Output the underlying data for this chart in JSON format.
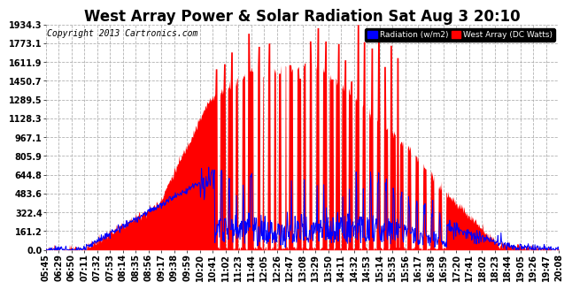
{
  "title": "West Array Power & Solar Radiation Sat Aug 3 20:10",
  "copyright": "Copyright 2013 Cartronics.com",
  "legend_radiation": "Radiation (w/m2)",
  "legend_west": "West Array (DC Watts)",
  "yticks": [
    0.0,
    161.2,
    322.4,
    483.6,
    644.8,
    805.9,
    967.1,
    1128.3,
    1289.5,
    1450.7,
    1611.9,
    1773.1,
    1934.3
  ],
  "ymax": 1934.3,
  "xtick_labels": [
    "05:45",
    "06:29",
    "06:50",
    "07:11",
    "07:32",
    "07:53",
    "08:14",
    "08:35",
    "08:56",
    "09:17",
    "09:38",
    "09:59",
    "10:20",
    "10:41",
    "11:02",
    "11:23",
    "11:44",
    "12:05",
    "12:26",
    "12:47",
    "13:08",
    "13:29",
    "13:50",
    "14:11",
    "14:32",
    "14:53",
    "15:14",
    "15:35",
    "15:56",
    "16:17",
    "16:38",
    "16:59",
    "17:20",
    "17:41",
    "18:02",
    "18:23",
    "18:44",
    "19:05",
    "19:26",
    "19:47",
    "20:08"
  ],
  "red_color": "#FF0000",
  "blue_color": "#0000FF",
  "bg_color": "#FFFFFF",
  "plot_bg_color": "#FFFFFF",
  "grid_color": "#AAAAAA",
  "title_fontsize": 12,
  "tick_fontsize": 7,
  "copyright_fontsize": 7
}
